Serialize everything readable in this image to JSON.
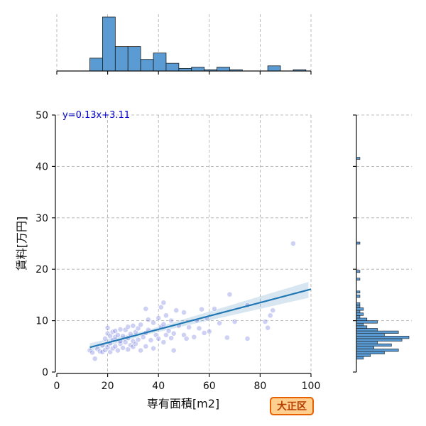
{
  "chart_data": {
    "type": "scatter",
    "xlabel": "専有面積[m2]",
    "ylabel": "賃料[万円]",
    "xlim": [
      0,
      100
    ],
    "ylim": [
      0,
      50
    ],
    "xticks": [
      0,
      20,
      40,
      60,
      80,
      100
    ],
    "yticks": [
      0,
      10,
      20,
      30,
      40,
      50
    ],
    "grid": true,
    "regression": {
      "slope": 0.13,
      "intercept": 3.11,
      "label": "y=0.13x+3.11",
      "x_range": [
        13,
        100
      ]
    },
    "points": [
      [
        13,
        4.2
      ],
      [
        14,
        3.8
      ],
      [
        15,
        2.6
      ],
      [
        16,
        4.5
      ],
      [
        17,
        4.0
      ],
      [
        18,
        3.9
      ],
      [
        18,
        5.2
      ],
      [
        19,
        4.3
      ],
      [
        19,
        6.5
      ],
      [
        20,
        4.8
      ],
      [
        20,
        7.5
      ],
      [
        20,
        8.6
      ],
      [
        21,
        3.9
      ],
      [
        21,
        5.6
      ],
      [
        21,
        7.0
      ],
      [
        22,
        6.2
      ],
      [
        22,
        7.8
      ],
      [
        22,
        4.6
      ],
      [
        23,
        5.0
      ],
      [
        23,
        6.8
      ],
      [
        23,
        8.0
      ],
      [
        24,
        4.2
      ],
      [
        24,
        7.2
      ],
      [
        25,
        5.5
      ],
      [
        25,
        8.3
      ],
      [
        25,
        6.0
      ],
      [
        26,
        4.7
      ],
      [
        26,
        7.0
      ],
      [
        27,
        5.8
      ],
      [
        27,
        8.2
      ],
      [
        28,
        4.4
      ],
      [
        28,
        6.6
      ],
      [
        28,
        8.8
      ],
      [
        29,
        5.2
      ],
      [
        29,
        7.4
      ],
      [
        30,
        6.0
      ],
      [
        30,
        9.0
      ],
      [
        30,
        4.9
      ],
      [
        31,
        7.8
      ],
      [
        31,
        5.5
      ],
      [
        32,
        8.5
      ],
      [
        32,
        6.3
      ],
      [
        33,
        4.2
      ],
      [
        33,
        9.2
      ],
      [
        34,
        6.8
      ],
      [
        35,
        5.0
      ],
      [
        35,
        7.6
      ],
      [
        35,
        12.3
      ],
      [
        36,
        8.2
      ],
      [
        36,
        10.2
      ],
      [
        37,
        6.2
      ],
      [
        38,
        4.6
      ],
      [
        38,
        9.6
      ],
      [
        39,
        7.2
      ],
      [
        40,
        6.5
      ],
      [
        40,
        10.5
      ],
      [
        41,
        8.8
      ],
      [
        41,
        12.6
      ],
      [
        42,
        5.8
      ],
      [
        42,
        9.3
      ],
      [
        42,
        13.5
      ],
      [
        43,
        7.2
      ],
      [
        43,
        11.0
      ],
      [
        44,
        8.0
      ],
      [
        45,
        6.6
      ],
      [
        45,
        10.0
      ],
      [
        46,
        4.2
      ],
      [
        46,
        7.5
      ],
      [
        47,
        12.0
      ],
      [
        48,
        9.0
      ],
      [
        50,
        7.2
      ],
      [
        50,
        11.6
      ],
      [
        51,
        6.5
      ],
      [
        52,
        8.7
      ],
      [
        54,
        6.8
      ],
      [
        55,
        10.0
      ],
      [
        56,
        8.5
      ],
      [
        57,
        12.2
      ],
      [
        58,
        7.6
      ],
      [
        59,
        10.5
      ],
      [
        60,
        7.9
      ],
      [
        62,
        12.3
      ],
      [
        64,
        9.5
      ],
      [
        67,
        6.7
      ],
      [
        68,
        15.1
      ],
      [
        70,
        9.8
      ],
      [
        75,
        13.0
      ],
      [
        75,
        6.5
      ],
      [
        82,
        9.8
      ],
      [
        83,
        8.6
      ],
      [
        84,
        11.0
      ],
      [
        85,
        12.0
      ],
      [
        93,
        25.0
      ]
    ],
    "top_histogram": {
      "bin_edges": [
        13,
        18,
        23,
        28,
        33,
        38,
        43,
        48,
        53,
        58,
        63,
        68,
        73,
        78,
        83,
        88,
        93,
        98
      ],
      "counts": [
        10,
        42,
        19,
        19,
        9,
        14,
        6,
        2,
        3,
        1,
        3,
        1,
        0,
        0,
        4,
        0,
        1
      ]
    },
    "right_histogram": {
      "bin_edges": [
        2.5,
        3.0,
        3.5,
        4.0,
        4.5,
        5.0,
        5.5,
        6.0,
        6.5,
        7.0,
        7.5,
        8.0,
        8.5,
        9.0,
        9.5,
        10.0,
        10.5,
        11.0,
        11.5,
        12.0,
        12.5,
        13.0,
        13.5,
        14.0,
        14.5,
        15.0
      ],
      "counts": [
        2,
        4,
        8,
        12,
        5,
        10,
        6,
        13,
        15,
        8,
        12,
        6,
        3,
        2,
        6,
        3,
        1,
        2,
        1,
        2,
        1,
        1,
        0,
        0,
        1
      ],
      "outliers": [
        {
          "y": 15.5,
          "count": 1
        },
        {
          "y": 18.0,
          "count": 1
        },
        {
          "y": 19.5,
          "count": 1
        },
        {
          "y": 25.0,
          "count": 1
        },
        {
          "y": 41.5,
          "count": 1
        }
      ]
    },
    "colors": {
      "point": "#4f5bd5",
      "line": "#1f77b4",
      "band": "#1f77b4",
      "hist": "#5a9bd4",
      "eq": "#0000cc"
    }
  },
  "badge": {
    "label": "大正区"
  }
}
